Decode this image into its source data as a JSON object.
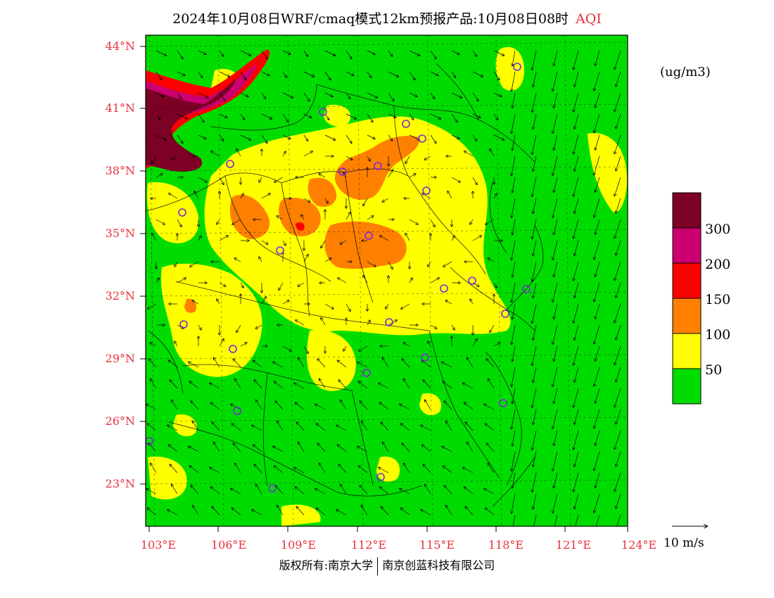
{
  "title": {
    "main": "2024年10月08日WRF/cmaq模式12km预报产品:10月08日08时",
    "variable": "AQI"
  },
  "units": "(ug/m3)",
  "lat_ticks": [
    "44°N",
    "41°N",
    "38°N",
    "35°N",
    "32°N",
    "29°N",
    "26°N",
    "23°N"
  ],
  "lon_ticks": [
    "103°E",
    "106°E",
    "109°E",
    "112°E",
    "115°E",
    "118°E",
    "121°E",
    "124°E"
  ],
  "legend": {
    "colors": [
      "#00dc00",
      "#ffff00",
      "#ff8000",
      "#ff0000",
      "#cc0070",
      "#7d0025"
    ],
    "labels": [
      "50",
      "100",
      "150",
      "200",
      "300"
    ]
  },
  "vector_key": "10 m/s",
  "footer": {
    "left": "版权所有:南京大学",
    "right": "南京创蓝科技有限公司"
  },
  "colors": {
    "good": "#00dc00",
    "moderate": "#ffff00",
    "sensitive": "#ff8000",
    "unhealthy": "#ff0000",
    "very_unhealthy": "#cc0070",
    "hazardous": "#7d0025",
    "tick_red": "#e8303a",
    "station": "#7a2ad8"
  }
}
